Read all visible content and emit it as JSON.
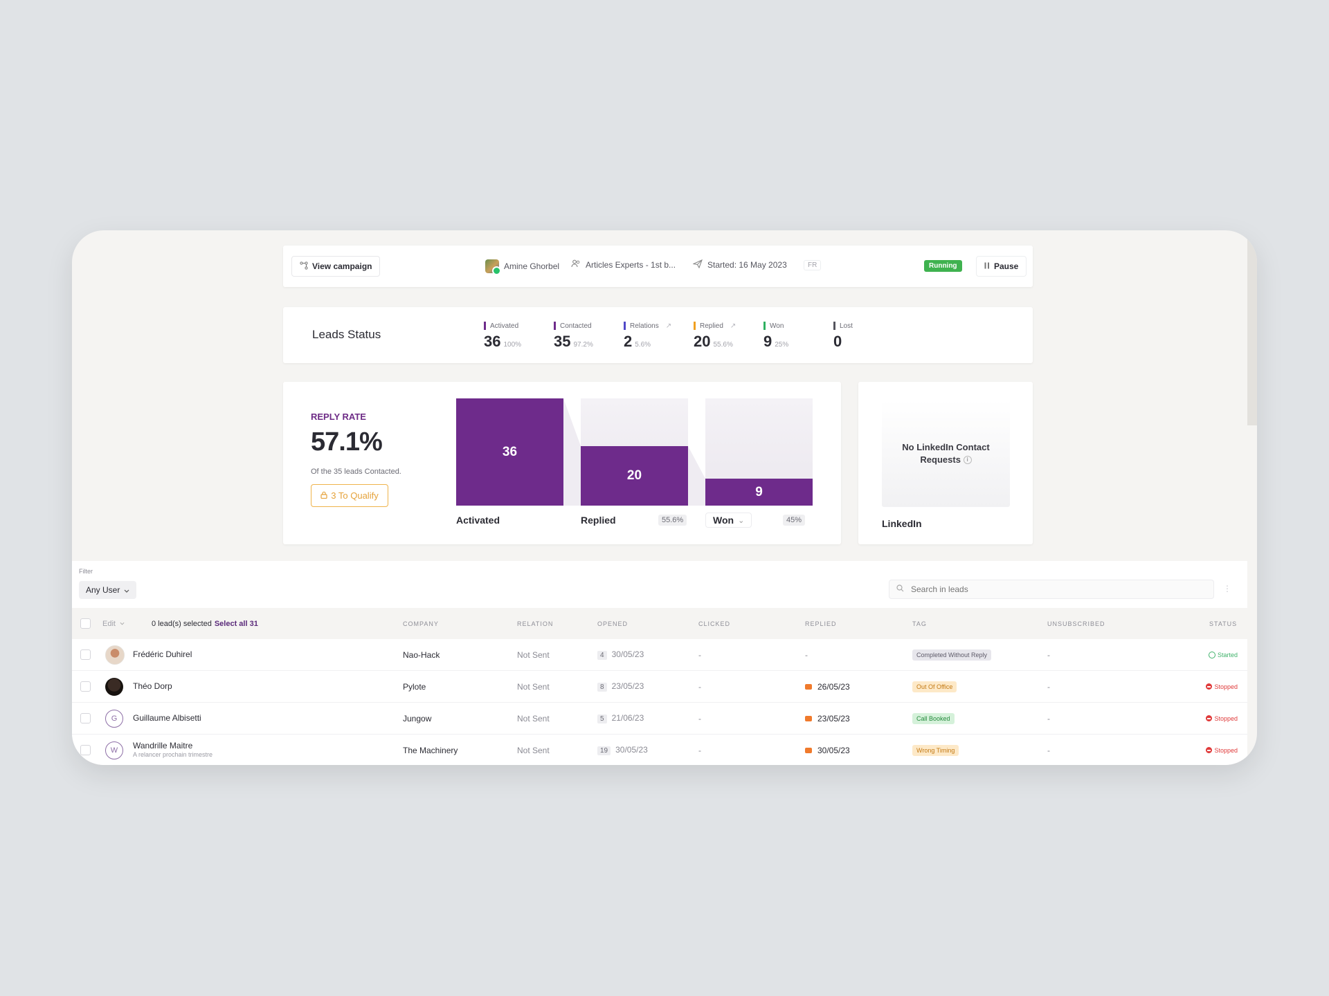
{
  "topbar": {
    "view_campaign": "View campaign",
    "owner": "Amine Ghorbel",
    "list_name": "Articles Experts - 1st b...",
    "started": "Started: 16 May 2023",
    "language": "FR",
    "status": "Running",
    "pause": "Pause"
  },
  "leads_status": {
    "title": "Leads Status",
    "metrics": [
      {
        "label": "Activated",
        "value": "36",
        "pct": "100%",
        "color": "#6e2b8b"
      },
      {
        "label": "Contacted",
        "value": "35",
        "pct": "97.2%",
        "color": "#6e2b8b"
      },
      {
        "label": "Relations",
        "value": "2",
        "pct": "5.6%",
        "color": "#5048c8"
      },
      {
        "label": "Replied",
        "value": "20",
        "pct": "55.6%",
        "color": "#f0a020"
      },
      {
        "label": "Won",
        "value": "9",
        "pct": "25%",
        "color": "#2fb060"
      },
      {
        "label": "Lost",
        "value": "0",
        "pct": "",
        "color": "#55555e"
      }
    ]
  },
  "reply": {
    "label": "REPLY RATE",
    "value": "57.1%",
    "sub": "Of the 35 leads Contacted.",
    "qualify": "3 To Qualify"
  },
  "funnel": {
    "max": 36,
    "columns": [
      {
        "label": "Activated",
        "value": 36,
        "pct": ""
      },
      {
        "label": "Replied",
        "value": 20,
        "pct": "55.6%"
      },
      {
        "label": "Won",
        "value": 9,
        "pct": "45%"
      }
    ]
  },
  "linkedin": {
    "message": "No LinkedIn Contact Requests",
    "label": "LinkedIn"
  },
  "filter": {
    "label": "Filter",
    "user": "Any User",
    "search_placeholder": "Search in leads"
  },
  "table": {
    "edit": "Edit",
    "selection": "0 lead(s) selected",
    "select_all": "Select all 31",
    "columns": [
      "COMPANY",
      "RELATION",
      "OPENED",
      "CLICKED",
      "REPLIED",
      "TAG",
      "UNSUBSCRIBED",
      "STATUS"
    ],
    "rows": [
      {
        "name": "Frédéric Duhirel",
        "note": "",
        "avatar": "photo1",
        "company": "Nao-Hack",
        "relation": "Not Sent",
        "opens": "4",
        "opened": "30/05/23",
        "clicked": "-",
        "replied": "-",
        "replied_icon": false,
        "tag": "Completed Without Reply",
        "tag_style": "gray",
        "unsub": "-",
        "status": "Started"
      },
      {
        "name": "Théo Dorp",
        "note": "",
        "avatar": "photo2",
        "company": "Pylote",
        "relation": "Not Sent",
        "opens": "8",
        "opened": "23/05/23",
        "clicked": "-",
        "replied": "26/05/23",
        "replied_icon": true,
        "tag": "Out Of Office",
        "tag_style": "orange",
        "unsub": "-",
        "status": "Stopped"
      },
      {
        "name": "Guillaume Albisetti",
        "note": "",
        "avatar": "G",
        "company": "Jungow",
        "relation": "Not Sent",
        "opens": "5",
        "opened": "21/06/23",
        "clicked": "-",
        "replied": "23/05/23",
        "replied_icon": true,
        "tag": "Call Booked",
        "tag_style": "green",
        "unsub": "-",
        "status": "Stopped"
      },
      {
        "name": "Wandrille Maitre",
        "note": "A relancer prochain trimestre",
        "avatar": "W",
        "company": "The Machinery",
        "relation": "Not Sent",
        "opens": "19",
        "opened": "30/05/23",
        "clicked": "-",
        "replied": "30/05/23",
        "replied_icon": true,
        "tag": "Wrong Timing",
        "tag_style": "orange",
        "unsub": "-",
        "status": "Stopped"
      }
    ]
  }
}
